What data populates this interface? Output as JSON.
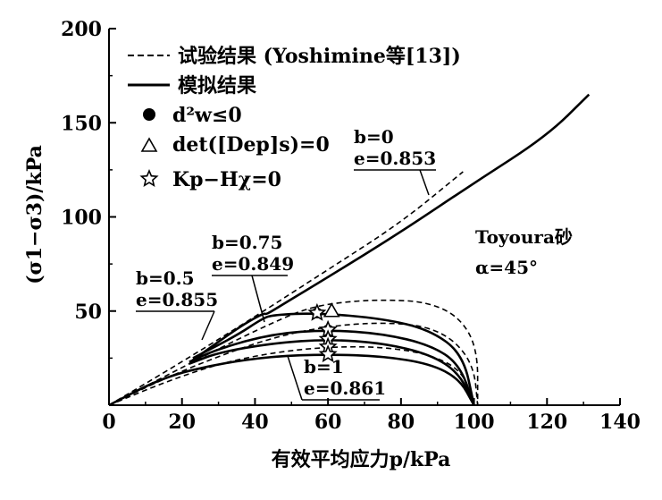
{
  "chart_data": {
    "type": "line",
    "xlabel": "有效平均应力p/kPa",
    "ylabel": "(σ1−σ3)/kPa",
    "xlim": [
      0,
      140
    ],
    "ylim": [
      0,
      200
    ],
    "xticks": [
      "0",
      "20",
      "40",
      "60",
      "80",
      "100",
      "120",
      "140"
    ],
    "yticks": [
      "50",
      "100",
      "150",
      "200"
    ],
    "grid": false,
    "legend_position": "top-left",
    "legend": {
      "experiment": "试验结果 (Yoshimine等[13])",
      "simulation": "模拟结果",
      "dot": "d²w≤0",
      "triangle": "det([Dep]s)=0",
      "star": "Kp−Hχ=0"
    },
    "annotations": {
      "material": "Toyoura砂",
      "alpha": "α=45°",
      "b0": "b=0",
      "e0": "e=0.853",
      "b075": "b=0.75",
      "e075": "e=0.849",
      "b05": "b=0.5",
      "e05": "e=0.855",
      "b1": "b=1",
      "e1": "e=0.861"
    },
    "series": [
      {
        "style": "experiment",
        "b": 0,
        "points": [
          [
            0,
            0
          ],
          [
            20,
            23
          ],
          [
            40,
            47
          ],
          [
            60,
            72
          ],
          [
            80,
            97
          ],
          [
            97,
            124
          ]
        ]
      },
      {
        "style": "experiment",
        "b": 0.75,
        "points": [
          [
            0,
            0
          ],
          [
            15,
            14
          ],
          [
            30,
            26
          ],
          [
            45,
            36
          ],
          [
            60,
            42
          ],
          [
            75,
            44
          ],
          [
            87,
            42
          ],
          [
            95,
            34
          ],
          [
            100,
            20
          ],
          [
            101,
            0
          ]
        ]
      },
      {
        "style": "experiment",
        "b": 0.5,
        "points": [
          [
            0,
            0
          ],
          [
            15,
            15
          ],
          [
            30,
            30
          ],
          [
            45,
            44
          ],
          [
            55,
            52
          ],
          [
            65,
            55
          ],
          [
            75,
            56
          ],
          [
            87,
            55
          ],
          [
            96,
            47
          ],
          [
            101,
            30
          ],
          [
            101,
            0
          ]
        ]
      },
      {
        "style": "experiment",
        "b": 1,
        "points": [
          [
            0,
            0
          ],
          [
            15,
            12
          ],
          [
            30,
            22
          ],
          [
            45,
            28
          ],
          [
            60,
            31
          ],
          [
            75,
            31
          ],
          [
            88,
            27
          ],
          [
            97,
            18
          ],
          [
            100,
            0
          ]
        ]
      },
      {
        "style": "simulation",
        "b": 0,
        "points": [
          [
            23,
            24
          ],
          [
            36,
            42
          ],
          [
            42.5,
            49
          ],
          [
            43,
            48
          ],
          [
            48,
            54
          ],
          [
            60,
            68
          ],
          [
            80,
            92
          ],
          [
            100,
            118
          ],
          [
            120,
            143
          ],
          [
            131.5,
            165
          ]
        ]
      },
      {
        "style": "simulation",
        "b": 0.75,
        "points": [
          [
            23,
            25
          ],
          [
            35,
            37
          ],
          [
            42,
            46
          ],
          [
            45,
            48
          ],
          [
            57,
            49
          ],
          [
            75,
            46
          ],
          [
            88,
            40
          ],
          [
            97,
            27
          ],
          [
            100,
            0
          ]
        ]
      },
      {
        "style": "simulation",
        "b": 0.5,
        "points": [
          [
            22,
            23
          ],
          [
            30,
            30
          ],
          [
            45,
            38
          ],
          [
            60,
            40
          ],
          [
            75,
            38
          ],
          [
            88,
            32
          ],
          [
            96,
            22
          ],
          [
            100,
            0
          ]
        ]
      },
      {
        "style": "simulation",
        "b": 0.5,
        "points": [
          [
            22,
            22
          ],
          [
            30,
            28
          ],
          [
            45,
            33
          ],
          [
            60,
            35
          ],
          [
            75,
            33
          ],
          [
            88,
            27
          ],
          [
            96,
            17
          ],
          [
            100,
            0
          ]
        ]
      },
      {
        "style": "simulation",
        "b": 1,
        "points": [
          [
            0,
            0
          ],
          [
            15,
            15
          ],
          [
            30,
            22
          ],
          [
            45,
            26
          ],
          [
            60,
            27
          ],
          [
            75,
            26
          ],
          [
            88,
            22
          ],
          [
            96,
            14
          ],
          [
            100,
            0
          ]
        ]
      }
    ],
    "markers": {
      "dot": [
        [
          57,
          49
        ],
        [
          60,
          40
        ],
        [
          60,
          35
        ]
      ],
      "triangle": [
        [
          61,
          50
        ]
      ],
      "star": [
        [
          57,
          49
        ],
        [
          60,
          40
        ],
        [
          60,
          35
        ],
        [
          60,
          31
        ],
        [
          60,
          27
        ]
      ]
    }
  }
}
